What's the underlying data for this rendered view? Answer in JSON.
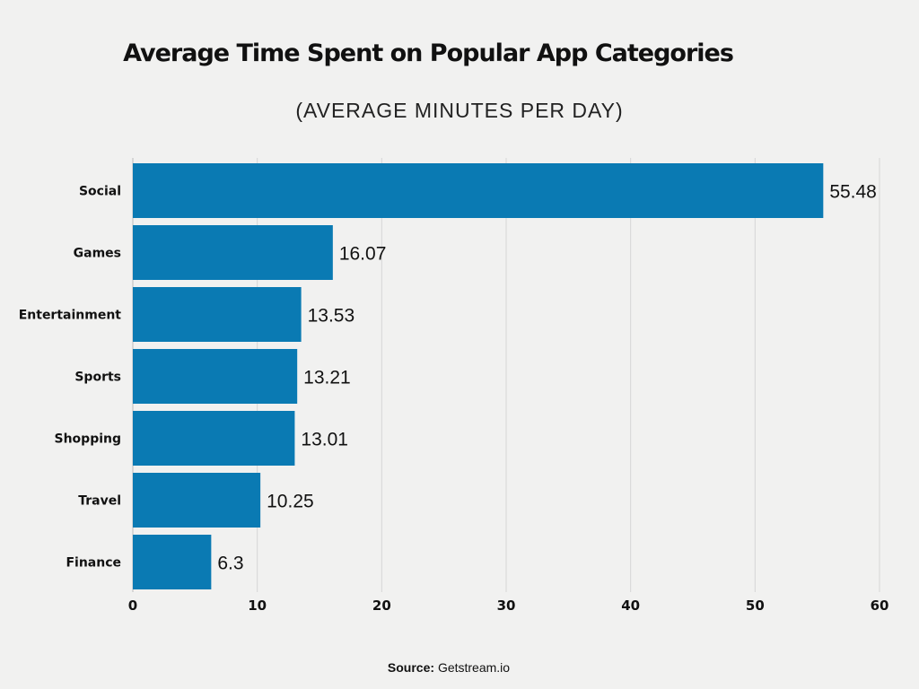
{
  "chart_data": {
    "type": "bar",
    "orientation": "horizontal",
    "title": "Average Time Spent on Popular App Categories",
    "subtitle": "(AVERAGE MINUTES PER DAY)",
    "categories": [
      "Social",
      "Games",
      "Entertainment",
      "Sports",
      "Shopping",
      "Travel",
      "Finance"
    ],
    "values": [
      55.48,
      16.07,
      13.53,
      13.21,
      13.01,
      10.25,
      6.3
    ],
    "value_labels": [
      "55.48",
      "16.07",
      "13.53",
      "13.21",
      "13.01",
      "10.25",
      "6.3"
    ],
    "xlim": [
      0,
      60
    ],
    "xticks": [
      "0",
      "10",
      "20",
      "30",
      "40",
      "50",
      "60"
    ],
    "grid": "vertical",
    "bar_color": "#0a7ab3",
    "xlabel": "",
    "ylabel": ""
  },
  "source": {
    "label": "Source:",
    "text": "Getstream.io"
  }
}
